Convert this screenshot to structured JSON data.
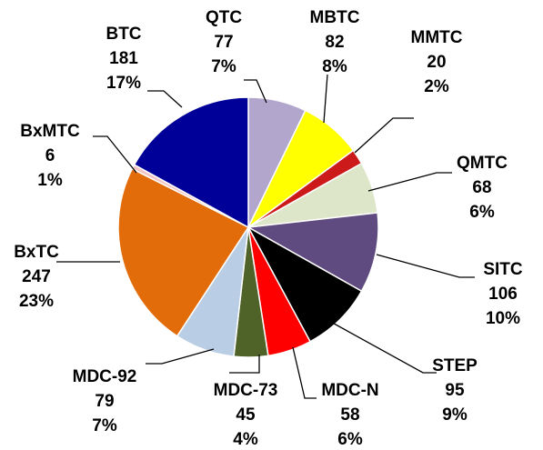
{
  "chart_data": {
    "type": "pie",
    "categories": [
      "QTC",
      "MBTC",
      "MMTC",
      "QMTC",
      "SITC",
      "STEP",
      "MDC-N",
      "MDC-73",
      "MDC-92",
      "BxTC",
      "BxMTC",
      "BTC"
    ],
    "values": [
      77,
      82,
      20,
      68,
      106,
      95,
      58,
      45,
      79,
      247,
      6,
      181
    ],
    "percent_labels": [
      "7%",
      "8%",
      "2%",
      "6%",
      "10%",
      "9%",
      "6%",
      "4%",
      "7%",
      "23%",
      "1%",
      "17%"
    ],
    "colors": [
      "#b3a6cc",
      "#ffff00",
      "#cc1a1a",
      "#dde6c8",
      "#5f4b7f",
      "#000000",
      "#ff0000",
      "#4f6228",
      "#b9cde5",
      "#e36c0a",
      "#f2c4c4",
      "#000099"
    ]
  }
}
